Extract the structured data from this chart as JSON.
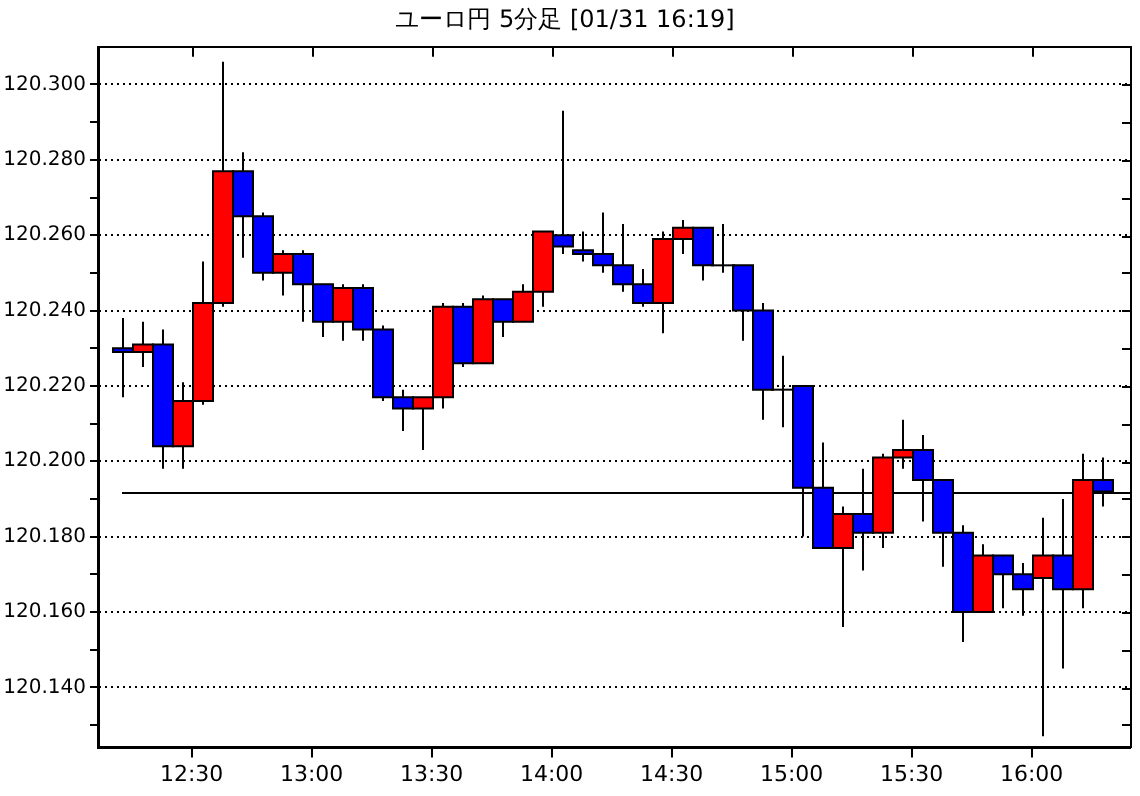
{
  "chart_data": {
    "type": "candlestick",
    "title": "ユーロ円 5分足 [01/31 16:19]",
    "x": [
      12.2083,
      12.2917,
      12.375,
      12.4583,
      12.5417,
      12.625,
      12.7083,
      12.7917,
      12.875,
      12.9583,
      13.0417,
      13.125,
      13.2083,
      13.2917,
      13.375,
      13.4583,
      13.5417,
      13.625,
      13.7083,
      13.7917,
      13.875,
      13.9583,
      14.0417,
      14.125,
      14.2083,
      14.2917,
      14.375,
      14.4583,
      14.5417,
      14.625,
      14.7083,
      14.7917,
      14.875,
      14.9583,
      15.0417,
      15.125,
      15.2083,
      15.2917,
      15.375,
      15.4583,
      15.5417,
      15.625,
      15.7083,
      15.7917,
      15.875,
      15.9583,
      16.0417,
      16.125,
      16.2083,
      16.2917
    ],
    "ohlc": [
      [
        120.23,
        120.238,
        120.217,
        120.229
      ],
      [
        120.229,
        120.237,
        120.225,
        120.231
      ],
      [
        120.231,
        120.235,
        120.198,
        120.204
      ],
      [
        120.204,
        120.221,
        120.198,
        120.216
      ],
      [
        120.216,
        120.253,
        120.215,
        120.242
      ],
      [
        120.242,
        120.306,
        120.241,
        120.277
      ],
      [
        120.277,
        120.282,
        120.254,
        120.265
      ],
      [
        120.265,
        120.266,
        120.248,
        120.25
      ],
      [
        120.25,
        120.256,
        120.244,
        120.255
      ],
      [
        120.255,
        120.256,
        120.237,
        120.247
      ],
      [
        120.247,
        120.247,
        120.233,
        120.237
      ],
      [
        120.237,
        120.247,
        120.232,
        120.246
      ],
      [
        120.246,
        120.247,
        120.232,
        120.235
      ],
      [
        120.235,
        120.236,
        120.216,
        120.217
      ],
      [
        120.217,
        120.219,
        120.208,
        120.214
      ],
      [
        120.214,
        120.217,
        120.203,
        120.217
      ],
      [
        120.217,
        120.242,
        120.214,
        120.241
      ],
      [
        120.241,
        120.242,
        120.225,
        120.226
      ],
      [
        120.226,
        120.244,
        120.226,
        120.243
      ],
      [
        120.243,
        120.243,
        120.233,
        120.237
      ],
      [
        120.237,
        120.247,
        120.237,
        120.245
      ],
      [
        120.245,
        120.261,
        120.241,
        120.261
      ],
      [
        120.26,
        120.293,
        120.255,
        120.257
      ],
      [
        120.256,
        120.261,
        120.253,
        120.255
      ],
      [
        120.255,
        120.266,
        120.25,
        120.252
      ],
      [
        120.252,
        120.263,
        120.245,
        120.247
      ],
      [
        120.247,
        120.251,
        120.241,
        120.242
      ],
      [
        120.242,
        120.261,
        120.234,
        120.259
      ],
      [
        120.259,
        120.264,
        120.255,
        120.262
      ],
      [
        120.262,
        120.262,
        120.248,
        120.252
      ],
      [
        120.252,
        120.263,
        120.25,
        120.252
      ],
      [
        120.252,
        120.252,
        120.232,
        120.24
      ],
      [
        120.24,
        120.242,
        120.211,
        120.219
      ],
      [
        120.219,
        120.228,
        120.209,
        120.219
      ],
      [
        120.22,
        120.22,
        120.18,
        120.193
      ],
      [
        120.193,
        120.205,
        120.177,
        120.177
      ],
      [
        120.177,
        120.188,
        120.156,
        120.186
      ],
      [
        120.186,
        120.198,
        120.171,
        120.181
      ],
      [
        120.181,
        120.202,
        120.177,
        120.201
      ],
      [
        120.201,
        120.211,
        120.198,
        120.203
      ],
      [
        120.203,
        120.207,
        120.184,
        120.195
      ],
      [
        120.195,
        120.195,
        120.172,
        120.181
      ],
      [
        120.181,
        120.183,
        120.152,
        120.16
      ],
      [
        120.16,
        120.178,
        120.16,
        120.175
      ],
      [
        120.175,
        120.175,
        120.161,
        120.17
      ],
      [
        120.17,
        120.173,
        120.159,
        120.166
      ],
      [
        120.169,
        120.185,
        120.127,
        120.175
      ],
      [
        120.175,
        120.19,
        120.145,
        120.166
      ],
      [
        120.166,
        120.202,
        120.161,
        120.195
      ],
      [
        120.195,
        120.201,
        120.188,
        120.192
      ]
    ],
    "colors": [
      "#0000ff",
      "#ff0000",
      "#0000ff",
      "#ff0000",
      "#ff0000",
      "#ff0000",
      "#0000ff",
      "#0000ff",
      "#ff0000",
      "#0000ff",
      "#0000ff",
      "#ff0000",
      "#0000ff",
      "#0000ff",
      "#0000ff",
      "#ff0000",
      "#ff0000",
      "#0000ff",
      "#ff0000",
      "#0000ff",
      "#ff0000",
      "#ff0000",
      "#0000ff",
      "#0000ff",
      "#0000ff",
      "#0000ff",
      "#0000ff",
      "#ff0000",
      "#ff0000",
      "#0000ff",
      "#000000",
      "#0000ff",
      "#0000ff",
      "#000000",
      "#0000ff",
      "#0000ff",
      "#ff0000",
      "#0000ff",
      "#ff0000",
      "#ff0000",
      "#0000ff",
      "#0000ff",
      "#0000ff",
      "#ff0000",
      "#0000ff",
      "#0000ff",
      "#ff0000",
      "#0000ff",
      "#ff0000",
      "#0000ff"
    ],
    "xlim": [
      12.11,
      16.41
    ],
    "xticks": [
      {
        "value": 12.5,
        "label": "12:30"
      },
      {
        "value": 13,
        "label": "13:00"
      },
      {
        "value": 13.5,
        "label": "13:30"
      },
      {
        "value": 14,
        "label": "14:00"
      },
      {
        "value": 14.5,
        "label": "14:30"
      },
      {
        "value": 15,
        "label": "15:00"
      },
      {
        "value": 15.5,
        "label": "15:30"
      },
      {
        "value": 16,
        "label": "16:00"
      }
    ],
    "ylim": [
      120.124,
      120.31
    ],
    "yticks": [
      {
        "value": 120.13,
        "label": null
      },
      {
        "value": 120.14,
        "label": "120.140"
      },
      {
        "value": 120.15,
        "label": null
      },
      {
        "value": 120.16,
        "label": "120.160"
      },
      {
        "value": 120.17,
        "label": null
      },
      {
        "value": 120.18,
        "label": "120.180"
      },
      {
        "value": 120.19,
        "label": null
      },
      {
        "value": 120.2,
        "label": "120.200"
      },
      {
        "value": 120.21,
        "label": null
      },
      {
        "value": 120.22,
        "label": "120.220"
      },
      {
        "value": 120.23,
        "label": null
      },
      {
        "value": 120.24,
        "label": "120.240"
      },
      {
        "value": 120.25,
        "label": null
      },
      {
        "value": 120.26,
        "label": "120.260"
      },
      {
        "value": 120.27,
        "label": null
      },
      {
        "value": 120.28,
        "label": "120.280"
      },
      {
        "value": 120.29,
        "label": null
      },
      {
        "value": 120.3,
        "label": "120.300"
      }
    ],
    "grid": "y",
    "ref_lines": [
      {
        "axis": "y",
        "value": 120.192,
        "color": "#000000"
      }
    ]
  }
}
